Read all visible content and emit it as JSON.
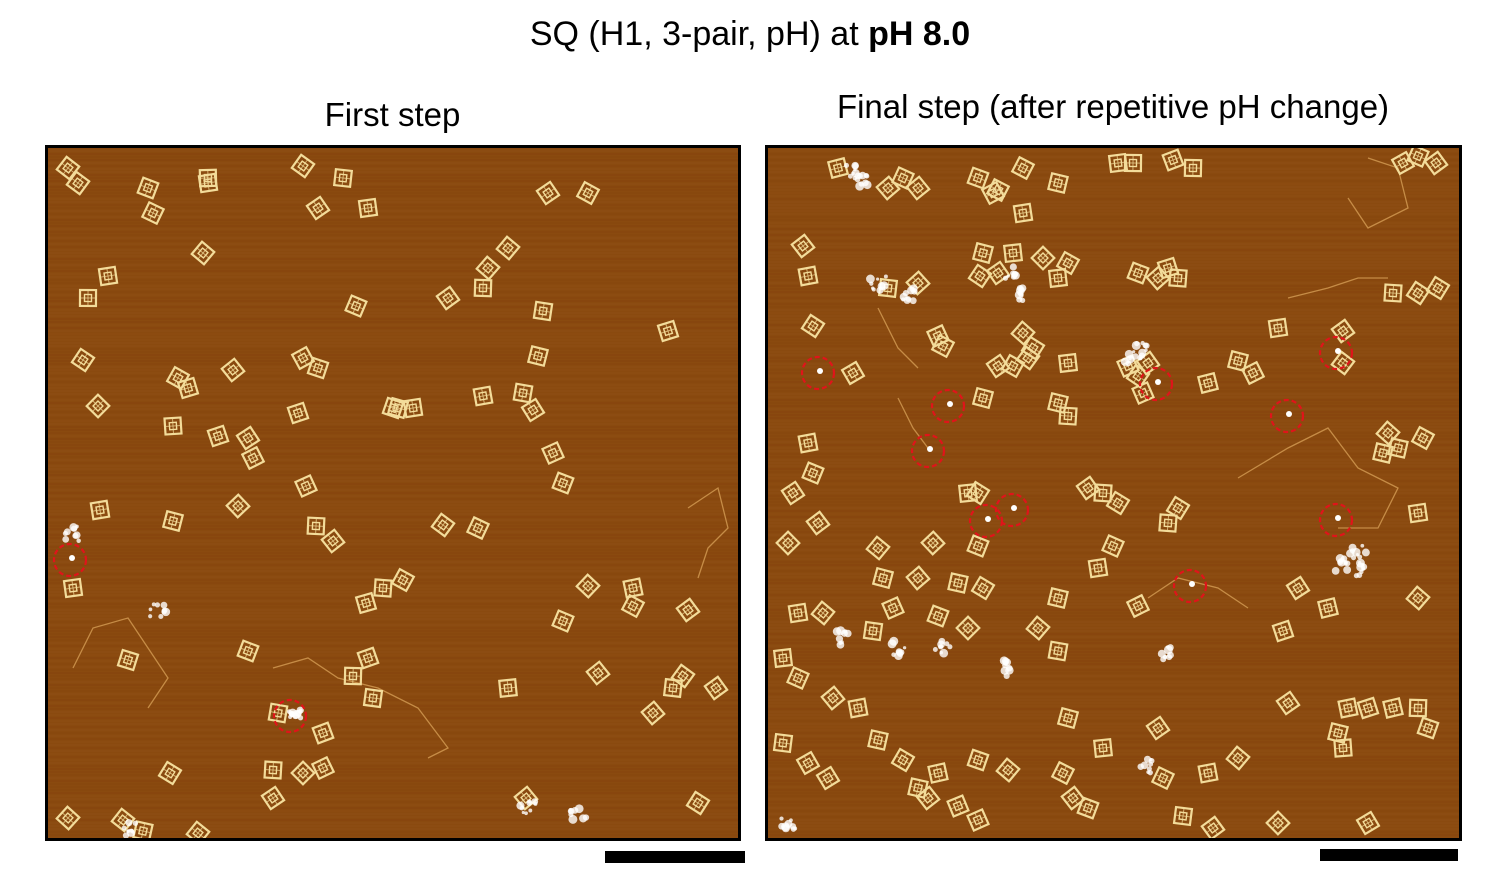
{
  "figure": {
    "title_prefix": "SQ (H1, 3-pair, pH) at ",
    "title_bold": "pH 8.0"
  },
  "panels": [
    {
      "label": "First step",
      "surface_color": "#8a4a0f",
      "particle_color": "#f3dc9a",
      "aggregate_color": "#ffffff",
      "highlight_color": "#e0141a",
      "highlighted_count": 2
    },
    {
      "label": "Final step (after repetitive pH change)",
      "surface_color": "#8a4a0f",
      "particle_color": "#f3dc9a",
      "aggregate_color": "#ffffff",
      "highlight_color": "#e0141a",
      "highlighted_count": 11
    }
  ]
}
